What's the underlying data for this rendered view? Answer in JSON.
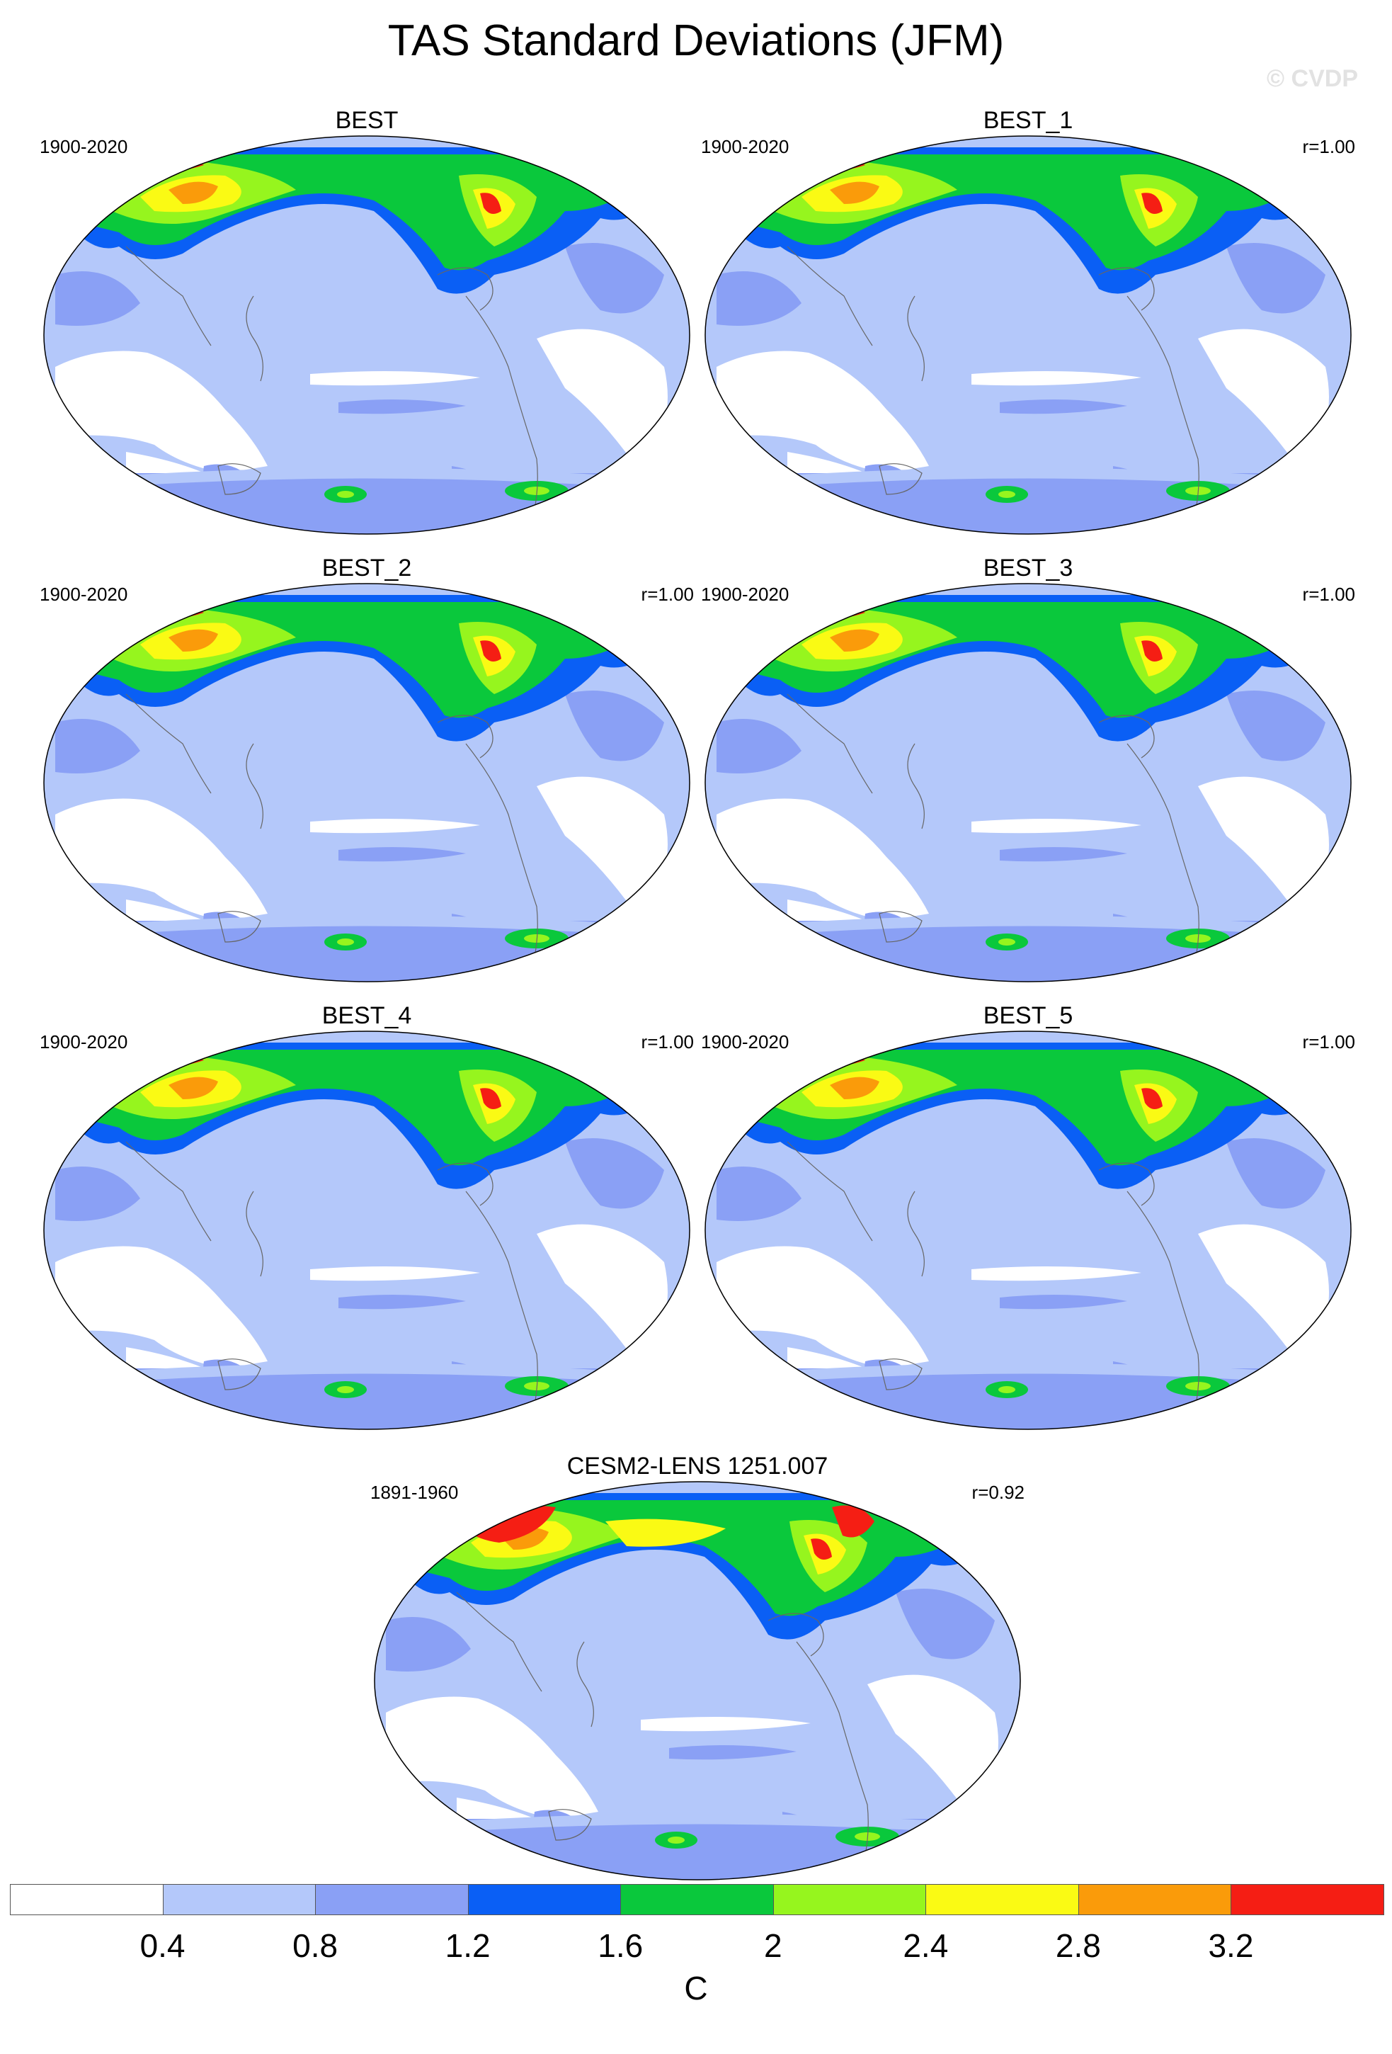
{
  "figure": {
    "title": "TAS Standard Deviations (JFM)",
    "watermark": "© CVDP"
  },
  "panels": [
    {
      "title": "BEST",
      "period": "1900-2020",
      "correlation": ""
    },
    {
      "title": "BEST_1",
      "period": "1900-2020",
      "correlation": "r=1.00"
    },
    {
      "title": "BEST_2",
      "period": "1900-2020",
      "correlation": "r=1.00"
    },
    {
      "title": "BEST_3",
      "period": "1900-2020",
      "correlation": "r=1.00"
    },
    {
      "title": "BEST_4",
      "period": "1900-2020",
      "correlation": "r=1.00"
    },
    {
      "title": "BEST_5",
      "period": "1900-2020",
      "correlation": "r=1.00"
    },
    {
      "title": "CESM2-LENS 1251.007",
      "period": "1891-1960",
      "correlation": "r=0.92"
    }
  ],
  "colorbar": {
    "labels": [
      "0.4",
      "0.8",
      "1.2",
      "1.6",
      "2",
      "2.4",
      "2.8",
      "3.2"
    ],
    "units": "C",
    "colors": [
      "#ffffff",
      "#b4c8fa",
      "#8aa0f5",
      "#0a5ff5",
      "#0ac83c",
      "#96f51e",
      "#fafa14",
      "#fa9b0a",
      "#f51e14"
    ]
  }
}
